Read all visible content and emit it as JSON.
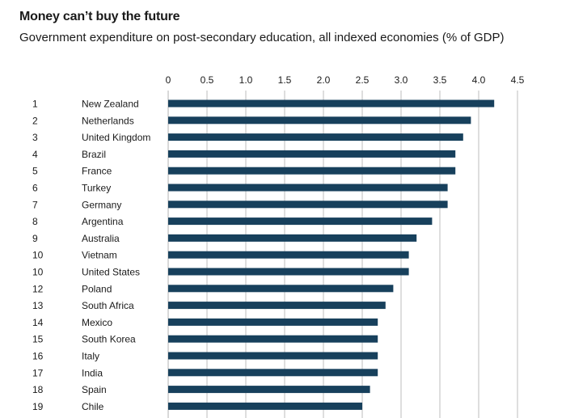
{
  "header": {
    "title": "Money can’t buy the future",
    "subtitle": "Government expenditure on post-secondary education, all indexed economies (% of GDP)"
  },
  "chart_data": {
    "type": "bar",
    "orientation": "horizontal",
    "title": "Money can’t buy the future",
    "subtitle": "Government expenditure on post-secondary education, all indexed economies (% of GDP)",
    "xlabel": "",
    "ylabel": "",
    "xlim": [
      0,
      4.5
    ],
    "ticks": [
      "0",
      "0.5",
      "1.0",
      "1.5",
      "2.0",
      "2.5",
      "3.0",
      "3.5",
      "4.0",
      "4.5"
    ],
    "tick_values": [
      0,
      0.5,
      1.0,
      1.5,
      2.0,
      2.5,
      3.0,
      3.5,
      4.0,
      4.5
    ],
    "grid": true,
    "bar_color": "#17405c",
    "grid_color": "#c9c9c9",
    "ranks": [
      "1",
      "2",
      "3",
      "4",
      "5",
      "6",
      "7",
      "8",
      "9",
      "10",
      "10",
      "12",
      "13",
      "14",
      "15",
      "16",
      "17",
      "18",
      "19"
    ],
    "categories": [
      "New Zealand",
      "Netherlands",
      "United Kingdom",
      "Brazil",
      "France",
      "Turkey",
      "Germany",
      "Argentina",
      "Australia",
      "Vietnam",
      "United States",
      "Poland",
      "South Africa",
      "Mexico",
      "South Korea",
      "Italy",
      "India",
      "Spain",
      "Chile"
    ],
    "values": [
      4.2,
      3.9,
      3.8,
      3.7,
      3.7,
      3.6,
      3.6,
      3.4,
      3.2,
      3.1,
      3.1,
      2.9,
      2.8,
      2.7,
      2.7,
      2.7,
      2.7,
      2.6,
      2.5
    ]
  }
}
